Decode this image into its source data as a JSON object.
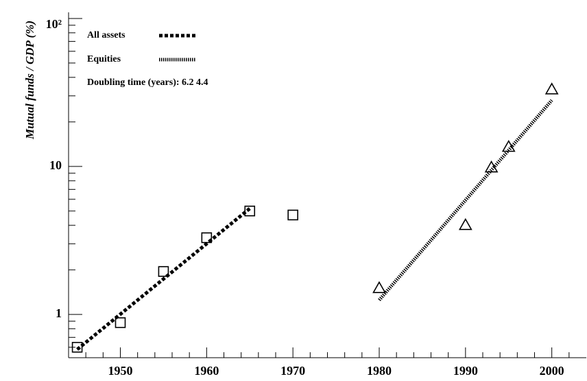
{
  "chart_data": {
    "type": "scatter",
    "ylabel": "Mutual funds / GDP (%)",
    "log_y": true,
    "xlim": [
      1944,
      2004
    ],
    "ylim": [
      0.51,
      110
    ],
    "xticks": [
      1950,
      1960,
      1970,
      1980,
      1990,
      2000
    ],
    "xminorticks": [
      1946,
      1948,
      1952,
      1954,
      1956,
      1958,
      1962,
      1964,
      1966,
      1968,
      1972,
      1974,
      1976,
      1978,
      1982,
      1984,
      1986,
      1988,
      1992,
      1994,
      1996,
      1998,
      2002
    ],
    "yticks": [
      1,
      10,
      {
        "value": 100,
        "label": "10²"
      }
    ],
    "yminorticks": [
      0.6,
      0.7,
      0.8,
      0.9,
      2,
      3,
      4,
      5,
      6,
      7,
      8,
      9,
      20,
      30,
      40,
      50,
      60,
      70,
      80,
      90
    ],
    "series": [
      {
        "name": "All assets",
        "marker": "square",
        "color": "#000000",
        "line_style": "dashed",
        "x": [
          1945,
          1950,
          1955,
          1960,
          1965,
          1970
        ],
        "values": [
          0.6,
          0.88,
          1.95,
          3.3,
          5.0,
          4.7
        ],
        "fit": {
          "x": [
            1945,
            1965
          ],
          "values": [
            0.58,
            5.2
          ]
        }
      },
      {
        "name": "Equities",
        "marker": "triangle",
        "color": "#000000",
        "line_style": "dotted",
        "x": [
          1980,
          1990,
          1993,
          1995,
          2000
        ],
        "values": [
          1.5,
          4.0,
          9.8,
          13.5,
          33
        ],
        "fit": {
          "x": [
            1980,
            2000
          ],
          "values": [
            1.25,
            28
          ]
        }
      }
    ],
    "annotation": "Doubling time (years): 6.2   4.4"
  }
}
